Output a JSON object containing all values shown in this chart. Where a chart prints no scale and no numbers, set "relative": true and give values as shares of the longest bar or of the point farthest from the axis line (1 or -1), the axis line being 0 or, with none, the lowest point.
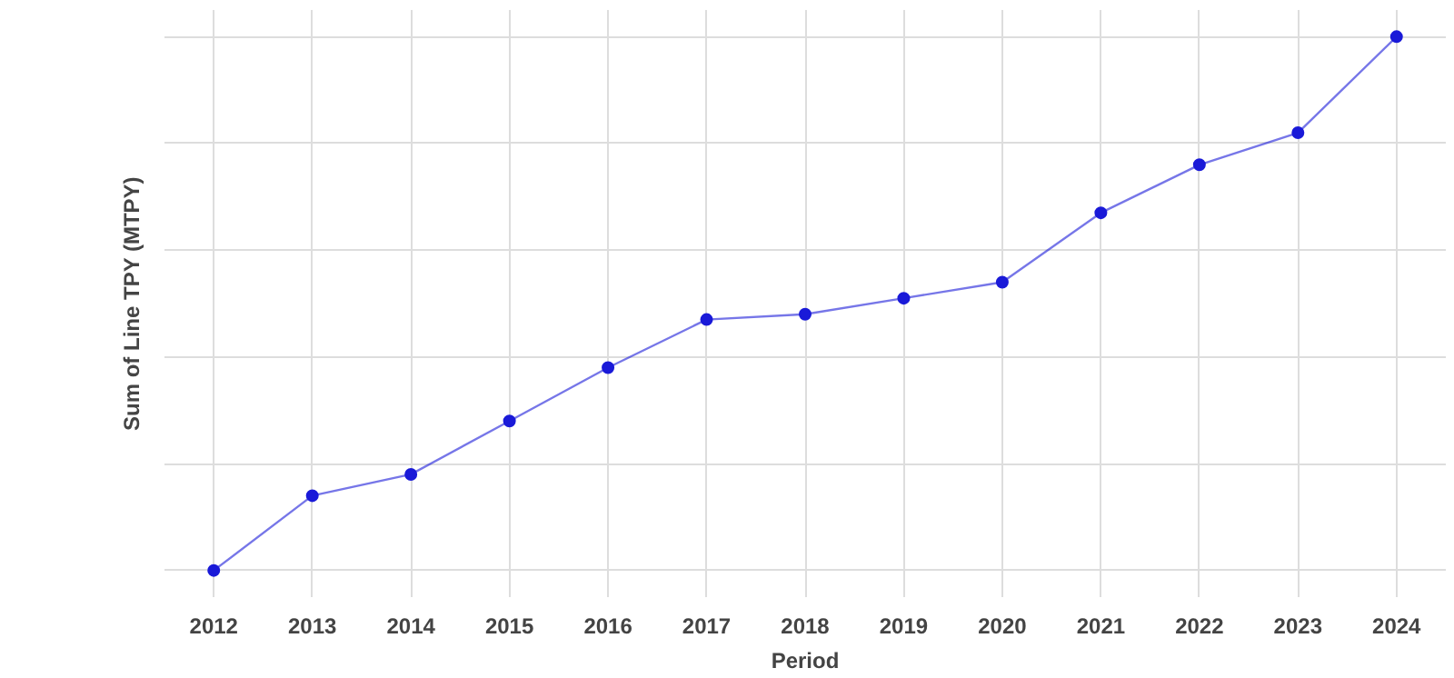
{
  "chart_data": {
    "type": "line",
    "xlabel": "Period",
    "ylabel": "Sum of Line TPY (MTPY)",
    "relative": true,
    "grid": true,
    "marker": "circle",
    "line_style": "solid",
    "categories": [
      "2012",
      "2013",
      "2014",
      "2015",
      "2016",
      "2017",
      "2018",
      "2019",
      "2020",
      "2021",
      "2022",
      "2023",
      "2024"
    ],
    "series": [
      {
        "color": "#1a1ad8",
        "values": [
          0,
          0.14,
          0.18,
          0.28,
          0.38,
          0.47,
          0.48,
          0.51,
          0.54,
          0.67,
          0.76,
          0.82,
          1
        ]
      }
    ]
  }
}
